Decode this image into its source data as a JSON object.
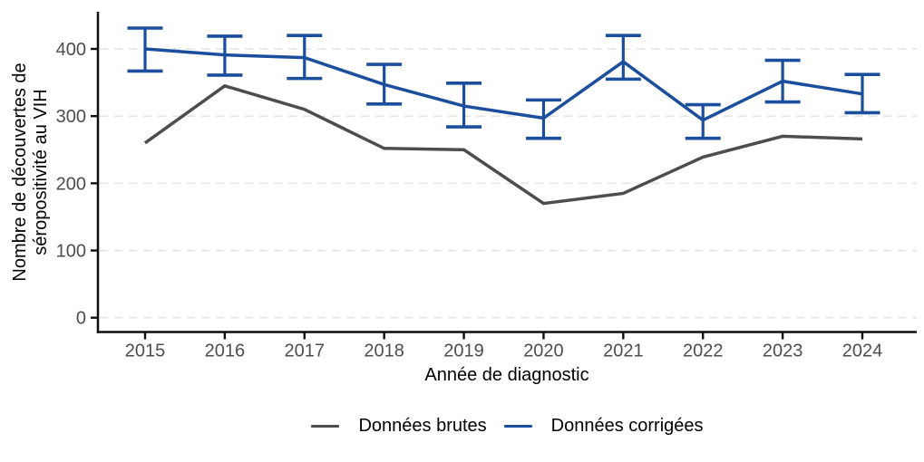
{
  "chart_data": {
    "type": "line",
    "title": "",
    "xlabel": "Année de diagnostic",
    "ylabel": "Nombre de découvertes de séropositivité au VIH",
    "ylabel_lines": [
      "Nombre de découvertes de",
      "séropositivité au VIH"
    ],
    "categories": [
      "2015",
      "2016",
      "2017",
      "2018",
      "2019",
      "2020",
      "2021",
      "2022",
      "2023",
      "2024"
    ],
    "yticks": [
      0,
      100,
      200,
      300,
      400
    ],
    "ylim": [
      0,
      450
    ],
    "grid": "horizontal-major-dashed",
    "legend_position": "bottom-center",
    "axis_line_color": "#0f0f0f",
    "grid_color": "#e4e4e4",
    "tick_label_color": "#4d4d4d",
    "series": [
      {
        "name": "Données brutes",
        "color": "#4d4d4d",
        "values": [
          260,
          345,
          310,
          252,
          250,
          170,
          185,
          239,
          270,
          266
        ]
      },
      {
        "name": "Données corrigées",
        "color": "#1b4e9c",
        "values": [
          400,
          391,
          387,
          347,
          315,
          297,
          381,
          294,
          352,
          333
        ],
        "ci_lower": [
          367,
          361,
          356,
          318,
          284,
          267,
          355,
          267,
          321,
          305
        ],
        "ci_upper": [
          431,
          419,
          420,
          377,
          349,
          324,
          420,
          317,
          383,
          362
        ]
      }
    ]
  }
}
